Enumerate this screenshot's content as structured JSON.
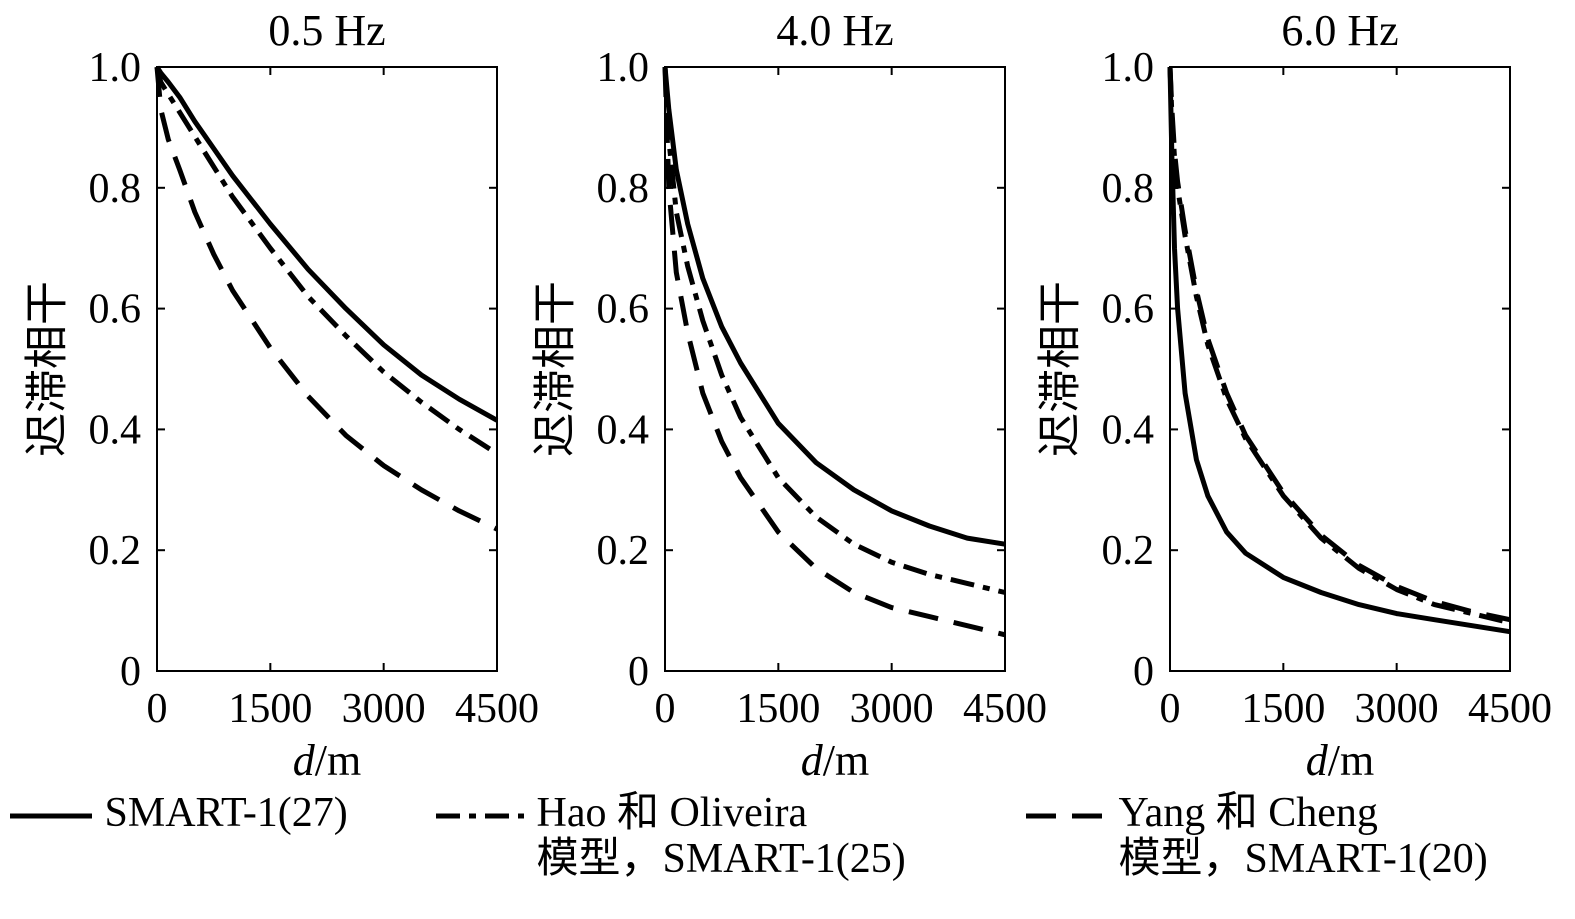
{
  "chart_data": [
    {
      "type": "line",
      "title": "0.5 Hz",
      "ylabel": "迟滞相干",
      "xlabel_italic": "d",
      "xlabel_unit": "/m",
      "xlim": [
        0,
        4500
      ],
      "ylim": [
        0,
        1.0
      ],
      "xticks": [
        "0",
        "1500",
        "3000",
        "4500"
      ],
      "yticks": [
        "0",
        "0.2",
        "0.4",
        "0.6",
        "0.8",
        "1.0"
      ],
      "x": [
        0,
        50,
        150,
        300,
        500,
        750,
        1000,
        1500,
        2000,
        2500,
        3000,
        3500,
        4000,
        4500
      ],
      "series": [
        {
          "style": "solid",
          "values": [
            1.0,
            0.99,
            0.975,
            0.95,
            0.91,
            0.865,
            0.82,
            0.74,
            0.665,
            0.6,
            0.54,
            0.49,
            0.45,
            0.415
          ]
        },
        {
          "style": "dashdot",
          "values": [
            1.0,
            0.975,
            0.955,
            0.925,
            0.885,
            0.835,
            0.785,
            0.7,
            0.62,
            0.555,
            0.495,
            0.445,
            0.4,
            0.36
          ]
        },
        {
          "style": "dashed",
          "values": [
            1.0,
            0.93,
            0.88,
            0.83,
            0.76,
            0.69,
            0.63,
            0.535,
            0.455,
            0.39,
            0.34,
            0.3,
            0.265,
            0.235
          ]
        }
      ]
    },
    {
      "type": "line",
      "title": "4.0 Hz",
      "ylabel": "迟滞相干",
      "xlabel_italic": "d",
      "xlabel_unit": "/m",
      "xlim": [
        0,
        4500
      ],
      "ylim": [
        0,
        1.0
      ],
      "xticks": [
        "0",
        "1500",
        "3000",
        "4500"
      ],
      "yticks": [
        "0",
        "0.2",
        "0.4",
        "0.6",
        "0.8",
        "1.0"
      ],
      "x": [
        0,
        50,
        150,
        300,
        500,
        750,
        1000,
        1500,
        2000,
        2500,
        3000,
        3500,
        4000,
        4500
      ],
      "series": [
        {
          "style": "solid",
          "values": [
            1.0,
            0.93,
            0.83,
            0.74,
            0.65,
            0.57,
            0.51,
            0.41,
            0.345,
            0.3,
            0.265,
            0.24,
            0.22,
            0.21
          ]
        },
        {
          "style": "dashdot",
          "values": [
            1.0,
            0.88,
            0.76,
            0.67,
            0.58,
            0.49,
            0.42,
            0.32,
            0.255,
            0.21,
            0.18,
            0.16,
            0.145,
            0.13
          ]
        },
        {
          "style": "dashed",
          "values": [
            1.0,
            0.8,
            0.66,
            0.56,
            0.46,
            0.38,
            0.32,
            0.23,
            0.17,
            0.13,
            0.105,
            0.09,
            0.075,
            0.06
          ]
        }
      ]
    },
    {
      "type": "line",
      "title": "6.0 Hz",
      "ylabel": "迟滞相干",
      "xlabel_italic": "d",
      "xlabel_unit": "/m",
      "xlim": [
        0,
        4500
      ],
      "ylim": [
        0,
        1.0
      ],
      "xticks": [
        "0",
        "1500",
        "3000",
        "4500"
      ],
      "yticks": [
        "0",
        "0.2",
        "0.4",
        "0.6",
        "0.8",
        "1.0"
      ],
      "x": [
        0,
        25,
        60,
        100,
        200,
        350,
        500,
        750,
        1000,
        1500,
        2000,
        2500,
        3000,
        3500,
        4000,
        4500
      ],
      "series": [
        {
          "style": "solid",
          "values": [
            1.0,
            0.85,
            0.7,
            0.6,
            0.46,
            0.35,
            0.29,
            0.23,
            0.195,
            0.155,
            0.13,
            0.11,
            0.095,
            0.085,
            0.075,
            0.065
          ]
        },
        {
          "style": "dashdot",
          "values": [
            1.0,
            0.92,
            0.85,
            0.8,
            0.72,
            0.62,
            0.54,
            0.45,
            0.385,
            0.29,
            0.22,
            0.17,
            0.135,
            0.11,
            0.095,
            0.08
          ]
        },
        {
          "style": "dashed",
          "values": [
            1.0,
            0.93,
            0.86,
            0.81,
            0.73,
            0.63,
            0.55,
            0.46,
            0.39,
            0.295,
            0.225,
            0.175,
            0.14,
            0.115,
            0.098,
            0.085
          ]
        }
      ]
    }
  ],
  "legend": {
    "items": [
      {
        "style": "solid",
        "line1": "SMART-1(27)",
        "line2": ""
      },
      {
        "style": "dashdot",
        "line1": "Hao 和 Oliveira",
        "line2": "模型，SMART-1(25)"
      },
      {
        "style": "dashed",
        "line1": "Yang 和 Cheng",
        "line2": "模型，SMART-1(20)"
      }
    ]
  }
}
